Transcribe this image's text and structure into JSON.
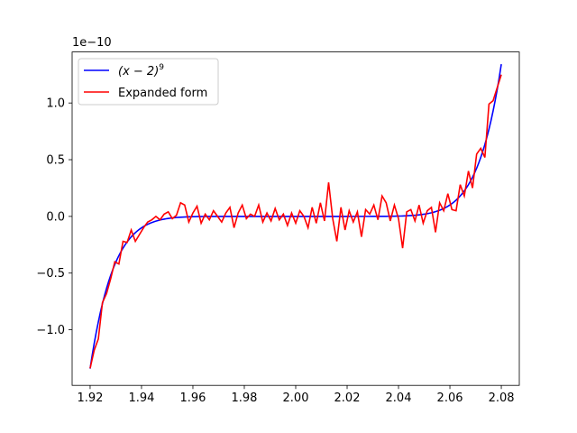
{
  "chart_data": {
    "type": "line",
    "title": "",
    "xlabel": "",
    "ylabel": "",
    "y_scale_label": "1e−10",
    "xlim": [
      1.913,
      2.087
    ],
    "ylim": [
      -1.49,
      1.45
    ],
    "x_ticks": [
      1.92,
      1.94,
      1.96,
      1.98,
      2.0,
      2.02,
      2.04,
      2.06,
      2.08
    ],
    "x_tick_labels": [
      "1.92",
      "1.94",
      "1.96",
      "1.98",
      "2.00",
      "2.02",
      "2.04",
      "2.06",
      "2.08"
    ],
    "y_ticks": [
      -1.0,
      -0.5,
      0.0,
      0.5,
      1.0
    ],
    "y_tick_labels": [
      "−1.0",
      "−0.5",
      "0.0",
      "0.5",
      "1.0"
    ],
    "grid": false,
    "legend_position": "top-left",
    "series": [
      {
        "name": "(x − 2)",
        "name_superscript": "9",
        "color": "#0000ff",
        "function": "(x-2)^9 scaled by 1e10",
        "x_range": [
          1.92,
          2.08
        ],
        "samples": 200
      },
      {
        "name": "Expanded form",
        "color": "#ff0000",
        "x": [
          1.92,
          1.9216,
          1.9232,
          1.9248,
          1.9264,
          1.928,
          1.9296,
          1.9312,
          1.9328,
          1.9344,
          1.936,
          1.9376,
          1.9392,
          1.9408,
          1.9424,
          1.944,
          1.9456,
          1.9472,
          1.9488,
          1.9504,
          1.952,
          1.9536,
          1.9552,
          1.9568,
          1.9584,
          1.96,
          1.9616,
          1.9632,
          1.9648,
          1.9664,
          1.968,
          1.9696,
          1.9712,
          1.9728,
          1.9744,
          1.976,
          1.9776,
          1.9792,
          1.9808,
          1.9824,
          1.984,
          1.9856,
          1.9872,
          1.9888,
          1.9904,
          1.992,
          1.9936,
          1.9952,
          1.9968,
          1.9984,
          2.0,
          2.0016,
          2.0032,
          2.0048,
          2.0064,
          2.008,
          2.0096,
          2.0112,
          2.0128,
          2.0144,
          2.016,
          2.0176,
          2.0192,
          2.0208,
          2.0224,
          2.024,
          2.0256,
          2.0272,
          2.0288,
          2.0304,
          2.032,
          2.0336,
          2.0352,
          2.0368,
          2.0384,
          2.04,
          2.0416,
          2.0432,
          2.0448,
          2.0464,
          2.048,
          2.0496,
          2.0512,
          2.0528,
          2.0544,
          2.056,
          2.0576,
          2.0592,
          2.0608,
          2.0624,
          2.064,
          2.0656,
          2.0672,
          2.0688,
          2.0704,
          2.072,
          2.0736,
          2.0752,
          2.0768,
          2.08
        ],
        "y": [
          -1.34,
          -1.18,
          -1.08,
          -0.76,
          -0.68,
          -0.55,
          -0.4,
          -0.42,
          -0.22,
          -0.23,
          -0.12,
          -0.22,
          -0.16,
          -0.1,
          -0.05,
          -0.03,
          0.0,
          -0.03,
          0.02,
          0.04,
          -0.02,
          0.01,
          0.12,
          0.1,
          -0.05,
          0.03,
          0.09,
          -0.06,
          0.02,
          -0.03,
          0.05,
          0.0,
          -0.05,
          0.03,
          0.08,
          -0.1,
          0.03,
          0.1,
          -0.02,
          0.02,
          0.0,
          0.1,
          -0.05,
          0.03,
          -0.04,
          0.07,
          -0.03,
          0.02,
          -0.08,
          0.03,
          -0.06,
          0.05,
          0.0,
          -0.1,
          0.08,
          -0.06,
          0.12,
          -0.04,
          0.3,
          -0.02,
          -0.22,
          0.08,
          -0.12,
          0.05,
          -0.05,
          0.04,
          -0.18,
          0.06,
          0.02,
          0.1,
          -0.03,
          0.18,
          0.12,
          -0.04,
          0.1,
          -0.02,
          -0.28,
          0.04,
          0.06,
          -0.04,
          0.1,
          -0.06,
          0.05,
          0.08,
          -0.14,
          0.12,
          0.05,
          0.2,
          0.06,
          0.05,
          0.28,
          0.18,
          0.4,
          0.25,
          0.55,
          0.6,
          0.52,
          0.99,
          1.02,
          1.25
        ]
      }
    ]
  }
}
